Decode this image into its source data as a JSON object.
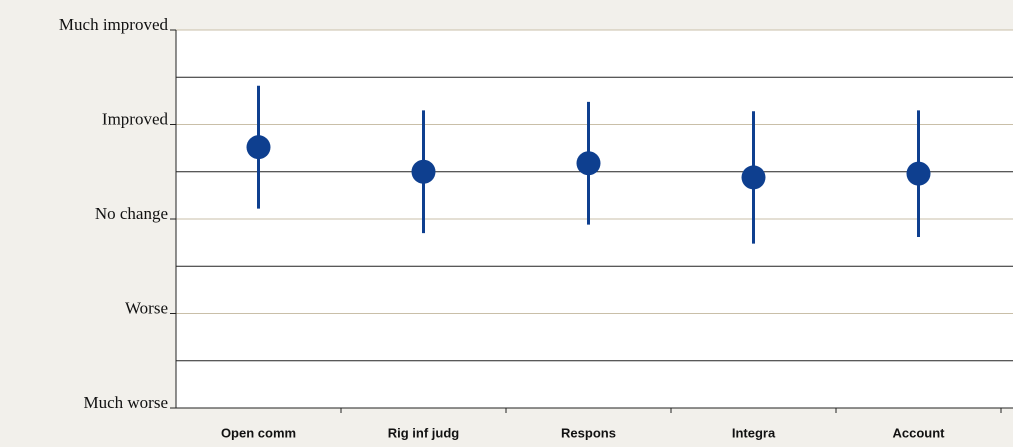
{
  "chart_data": {
    "type": "errorbar",
    "categories": [
      "Open comm",
      "Rig inf judg",
      "Respons",
      "Integra",
      "Account"
    ],
    "values": [
      3.76,
      3.5,
      3.59,
      3.44,
      3.48
    ],
    "errors": [
      0.65,
      0.65,
      0.65,
      0.7,
      0.67
    ],
    "color": "#0e3f8f",
    "ylim": [
      1,
      5
    ],
    "yticks": [
      {
        "value": 1,
        "label": "Much worse"
      },
      {
        "value": 2,
        "label": "Worse"
      },
      {
        "value": 3,
        "label": "No change"
      },
      {
        "value": 4,
        "label": "Improved"
      },
      {
        "value": 5,
        "label": "Much improved"
      }
    ],
    "minor_yticks": [
      1.5,
      2.5,
      3.5,
      4.5
    ],
    "grid": true
  }
}
